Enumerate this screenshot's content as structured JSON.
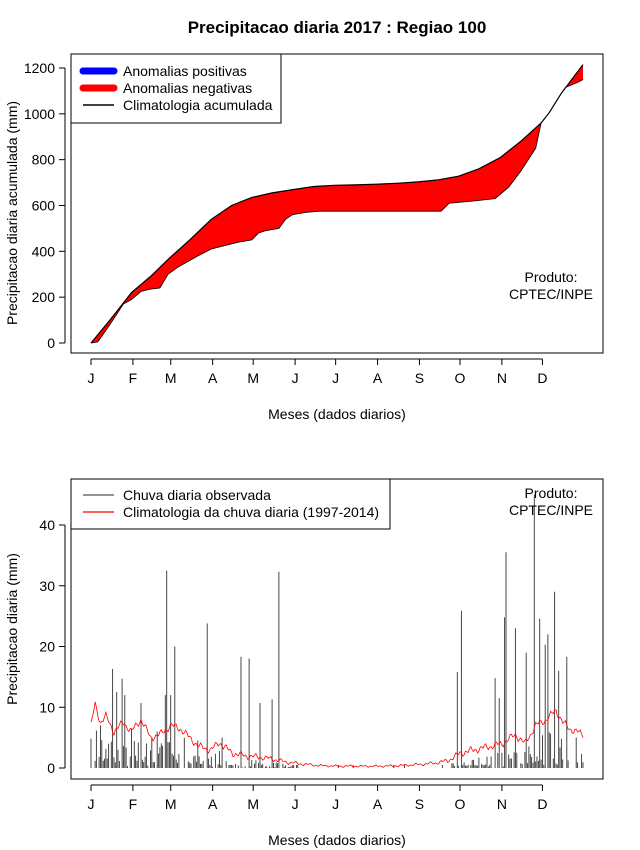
{
  "title": "Precipitacao diaria 2017 : Regiao 100",
  "product_label": [
    "Produto:",
    "CPTEC/INPE"
  ],
  "colors": {
    "positive": "#0000ff",
    "negative": "#ff0000",
    "clim_line": "#000000",
    "obs_bar": "#000000",
    "clim_daily": "#ff0000"
  },
  "chart_data": [
    {
      "type": "area",
      "name": "accumulated",
      "xlabel": "Meses (dados diarios)",
      "ylabel": "Precipitacao diaria acumulada (mm)",
      "ylim": [
        0,
        1200
      ],
      "yticks": [
        0,
        200,
        400,
        600,
        800,
        1000,
        1200
      ],
      "month_ticks": [
        "J",
        "F",
        "M",
        "A",
        "M",
        "J",
        "J",
        "A",
        "S",
        "O",
        "N",
        "D"
      ],
      "legend": {
        "position": "top-left",
        "entries": [
          "Anomalias positivas",
          "Anomalias negativas",
          "Climatologia acumulada"
        ]
      },
      "climatology_accumulated": [
        [
          1,
          0
        ],
        [
          15,
          100
        ],
        [
          31,
          220
        ],
        [
          45,
          290
        ],
        [
          59,
          370
        ],
        [
          74,
          450
        ],
        [
          90,
          540
        ],
        [
          105,
          600
        ],
        [
          120,
          635
        ],
        [
          135,
          655
        ],
        [
          151,
          670
        ],
        [
          166,
          683
        ],
        [
          181,
          688
        ],
        [
          196,
          690
        ],
        [
          212,
          693
        ],
        [
          227,
          697
        ],
        [
          243,
          703
        ],
        [
          258,
          712
        ],
        [
          273,
          728
        ],
        [
          288,
          760
        ],
        [
          304,
          810
        ],
        [
          319,
          880
        ],
        [
          334,
          960
        ],
        [
          340,
          1005
        ],
        [
          349,
          1090
        ],
        [
          365,
          1215
        ]
      ],
      "observed_accumulated": [
        [
          1,
          0
        ],
        [
          6,
          5
        ],
        [
          15,
          80
        ],
        [
          25,
          170
        ],
        [
          31,
          190
        ],
        [
          38,
          225
        ],
        [
          45,
          235
        ],
        [
          52,
          240
        ],
        [
          58,
          300
        ],
        [
          65,
          330
        ],
        [
          74,
          360
        ],
        [
          80,
          380
        ],
        [
          90,
          410
        ],
        [
          100,
          425
        ],
        [
          110,
          440
        ],
        [
          120,
          450
        ],
        [
          125,
          480
        ],
        [
          130,
          490
        ],
        [
          140,
          500
        ],
        [
          145,
          540
        ],
        [
          150,
          560
        ],
        [
          160,
          570
        ],
        [
          170,
          575
        ],
        [
          200,
          575
        ],
        [
          260,
          575
        ],
        [
          266,
          610
        ],
        [
          285,
          620
        ],
        [
          300,
          630
        ],
        [
          310,
          680
        ],
        [
          319,
          750
        ],
        [
          330,
          850
        ],
        [
          334,
          960
        ],
        [
          340,
          1005
        ],
        [
          349,
          1090
        ],
        [
          352,
          1115
        ],
        [
          362,
          1140
        ],
        [
          365,
          1150
        ]
      ]
    },
    {
      "type": "bar",
      "name": "daily",
      "xlabel": "Meses (dados diarios)",
      "ylabel": "Precipitacao diaria (mm)",
      "ylim": [
        0,
        45
      ],
      "yticks": [
        0,
        10,
        20,
        30,
        40
      ],
      "month_ticks": [
        "J",
        "F",
        "M",
        "A",
        "M",
        "J",
        "J",
        "A",
        "S",
        "O",
        "N",
        "D"
      ],
      "legend": {
        "position": "top-left",
        "entries": [
          "Chuva diaria observada",
          "Climatologia da chuva diaria (1997-2014)"
        ]
      },
      "observed_daily_peaks": [
        [
          1,
          4.8
        ],
        [
          8,
          7
        ],
        [
          14,
          4
        ],
        [
          17,
          16.3
        ],
        [
          20,
          12.5
        ],
        [
          24,
          14.7
        ],
        [
          26,
          12
        ],
        [
          31,
          6.5
        ],
        [
          38,
          10.7
        ],
        [
          46,
          5
        ],
        [
          50,
          6
        ],
        [
          56,
          12
        ],
        [
          57,
          32.5
        ],
        [
          60,
          12
        ],
        [
          63,
          20
        ],
        [
          70,
          5
        ],
        [
          80,
          4.5
        ],
        [
          87,
          23.8
        ],
        [
          98,
          5
        ],
        [
          112,
          18.3
        ],
        [
          118,
          18
        ],
        [
          126,
          10.7
        ],
        [
          135,
          11.3
        ],
        [
          140,
          32.3
        ],
        [
          272,
          15.8
        ],
        [
          275,
          25.9
        ],
        [
          300,
          14.8
        ],
        [
          303,
          11.5
        ],
        [
          307,
          24.8
        ],
        [
          308,
          35.5
        ],
        [
          315,
          23
        ],
        [
          323,
          19
        ],
        [
          329,
          45
        ],
        [
          333,
          24.6
        ],
        [
          337,
          20.3
        ],
        [
          339,
          22
        ],
        [
          344,
          29
        ],
        [
          347,
          16
        ],
        [
          353,
          18.3
        ],
        [
          360,
          5
        ]
      ],
      "climatology_daily": [
        [
          1,
          7
        ],
        [
          4,
          10.5
        ],
        [
          8,
          7.5
        ],
        [
          12,
          8.5
        ],
        [
          18,
          6
        ],
        [
          25,
          7.5
        ],
        [
          31,
          6
        ],
        [
          38,
          8
        ],
        [
          45,
          5
        ],
        [
          52,
          5.5
        ],
        [
          60,
          7
        ],
        [
          67,
          6.5
        ],
        [
          74,
          5
        ],
        [
          81,
          3.5
        ],
        [
          90,
          3
        ],
        [
          96,
          4.2
        ],
        [
          105,
          2.5
        ],
        [
          115,
          2
        ],
        [
          125,
          1.8
        ],
        [
          135,
          1.5
        ],
        [
          145,
          1
        ],
        [
          155,
          0.7
        ],
        [
          170,
          0.4
        ],
        [
          185,
          0.3
        ],
        [
          200,
          0.3
        ],
        [
          215,
          0.3
        ],
        [
          230,
          0.4
        ],
        [
          245,
          0.6
        ],
        [
          255,
          0.8
        ],
        [
          265,
          1.2
        ],
        [
          275,
          2.5
        ],
        [
          285,
          3
        ],
        [
          295,
          3.5
        ],
        [
          305,
          4
        ],
        [
          315,
          5.5
        ],
        [
          322,
          4
        ],
        [
          330,
          7
        ],
        [
          338,
          8
        ],
        [
          345,
          9.5
        ],
        [
          350,
          7.5
        ],
        [
          355,
          6.5
        ],
        [
          360,
          6
        ],
        [
          365,
          5.5
        ]
      ]
    }
  ]
}
